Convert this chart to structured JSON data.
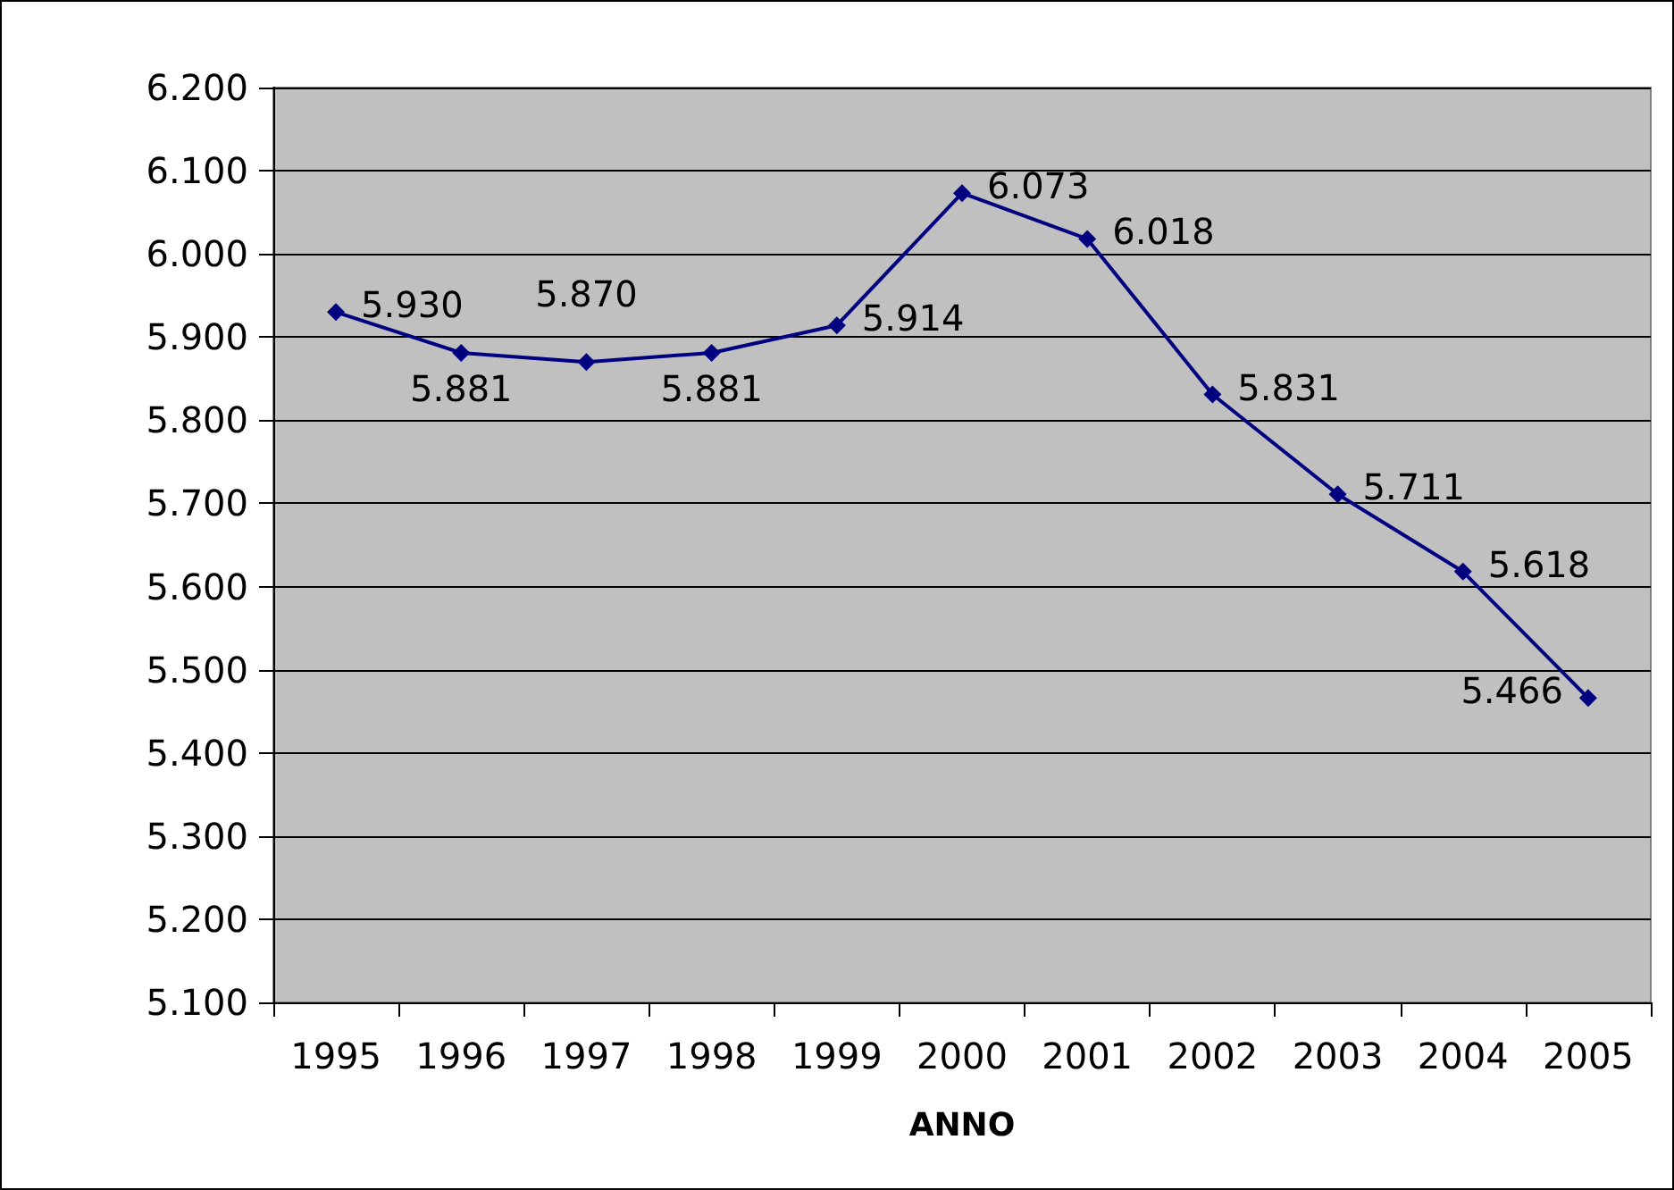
{
  "chart_data": {
    "type": "line",
    "xlabel": "ANNO",
    "categories": [
      "1995",
      "1996",
      "1997",
      "1998",
      "1999",
      "2000",
      "2001",
      "2002",
      "2003",
      "2004",
      "2005"
    ],
    "series": [
      {
        "color": "#000080",
        "values": [
          5930,
          5881,
          5870,
          5881,
          5914,
          6073,
          6018,
          5831,
          5711,
          5618,
          5466
        ],
        "value_labels": [
          "5.930",
          "5.881",
          "5.870",
          "5.881",
          "5.914",
          "6.073",
          "6.018",
          "5.831",
          "5.711",
          "5.618",
          "5.466"
        ]
      }
    ],
    "ylim": [
      5100,
      6200
    ],
    "yticks": [
      {
        "value": 5100,
        "label": "5.100"
      },
      {
        "value": 5200,
        "label": "5.200"
      },
      {
        "value": 5300,
        "label": "5.300"
      },
      {
        "value": 5400,
        "label": "5.400"
      },
      {
        "value": 5500,
        "label": "5.500"
      },
      {
        "value": 5600,
        "label": "5.600"
      },
      {
        "value": 5700,
        "label": "5.700"
      },
      {
        "value": 5800,
        "label": "5.800"
      },
      {
        "value": 5900,
        "label": "5.900"
      },
      {
        "value": 6000,
        "label": "6.000"
      },
      {
        "value": 6100,
        "label": "6.100"
      },
      {
        "value": 6200,
        "label": "6.200"
      }
    ],
    "grid": "y",
    "marker": "diamond",
    "line_style": "solid"
  }
}
